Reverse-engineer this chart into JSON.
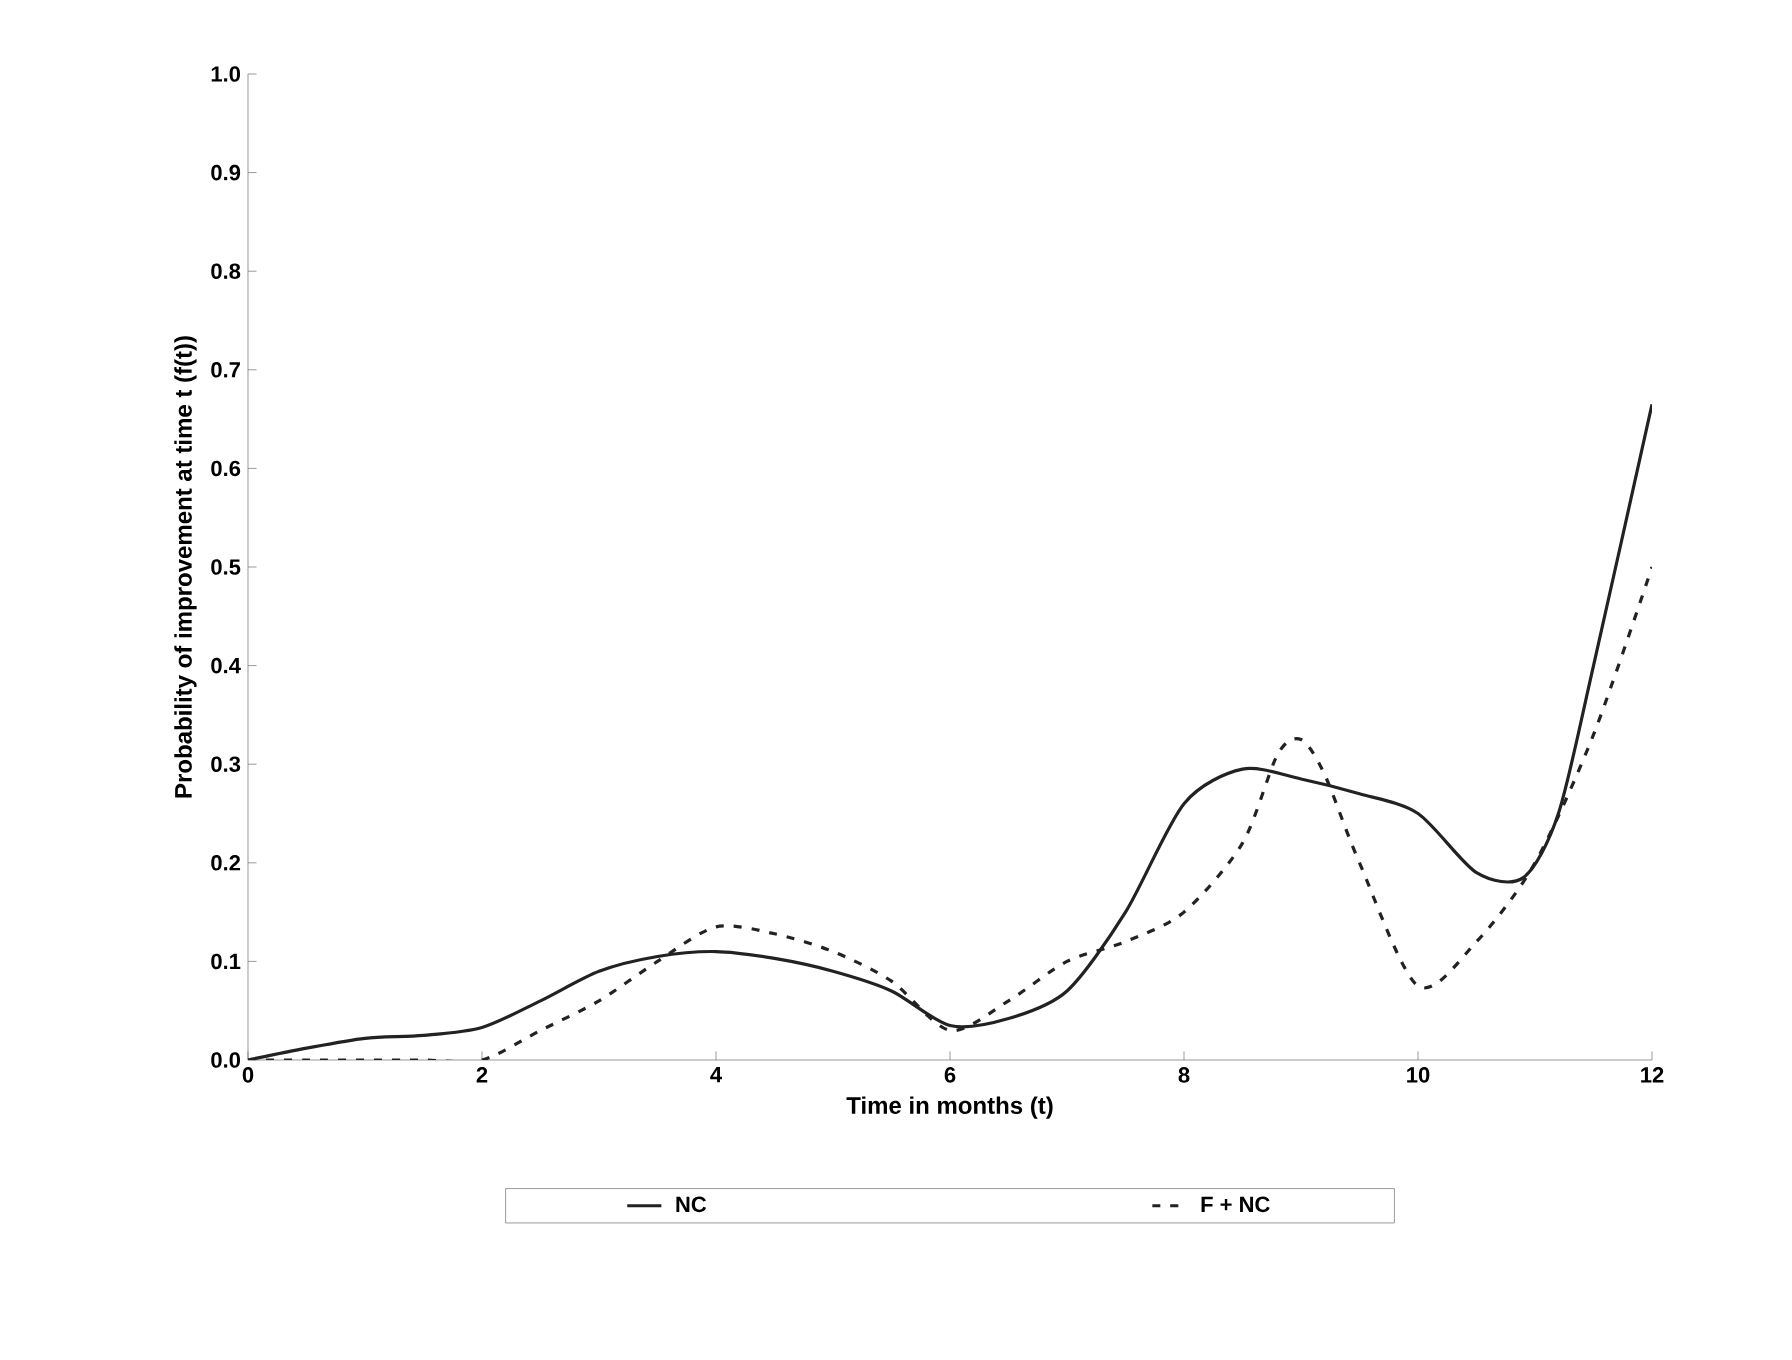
{
  "chart_data": {
    "type": "line",
    "xlabel": "Time in months (t)",
    "ylabel": "Probability of improvement at time t (f(t))",
    "xlim": [
      0,
      12
    ],
    "xticks": [
      0,
      2,
      4,
      6,
      8,
      10,
      12
    ],
    "ylim": [
      0,
      1
    ],
    "yticks": [
      {
        "value": 0,
        "label": "0.0"
      },
      {
        "value": 0.1,
        "label": "0.1"
      },
      {
        "value": 0.2,
        "label": "0.2"
      },
      {
        "value": 0.3,
        "label": "0.3"
      },
      {
        "value": 0.4,
        "label": "0.4"
      },
      {
        "value": 0.5,
        "label": "0.5"
      },
      {
        "value": 0.6,
        "label": "0.6"
      },
      {
        "value": 0.7,
        "label": "0.7"
      },
      {
        "value": 0.8,
        "label": "0.8"
      },
      {
        "value": 0.9,
        "label": "0.9"
      },
      {
        "value": 1,
        "label": "1.0"
      }
    ],
    "grid": false,
    "legend": "bottom",
    "marker": "none",
    "series": [
      {
        "name": "NC",
        "color": "#222222",
        "line_style": "solid",
        "x": [
          0,
          0.5,
          1,
          1.5,
          2,
          2.5,
          3,
          3.5,
          4,
          4.5,
          5,
          5.5,
          6,
          6.5,
          7,
          7.5,
          8,
          8.5,
          9,
          9.5,
          10,
          10.5,
          10.9,
          11.2,
          11.5,
          12
        ],
        "values": [
          0,
          0.012,
          0.022,
          0.025,
          0.033,
          0.06,
          0.09,
          0.105,
          0.11,
          0.103,
          0.09,
          0.07,
          0.035,
          0.042,
          0.07,
          0.15,
          0.26,
          0.295,
          0.285,
          0.27,
          0.25,
          0.19,
          0.185,
          0.25,
          0.4,
          0.665
        ]
      },
      {
        "name": "F + NC",
        "color": "#222222",
        "line_style": "dashed",
        "x": [
          0,
          0.5,
          1,
          1.5,
          2,
          2.5,
          3,
          3.5,
          4,
          4.5,
          5,
          5.5,
          6,
          6.5,
          7,
          7.5,
          8,
          8.5,
          8.8,
          9,
          9.2,
          9.5,
          10,
          10.5,
          11,
          11.5,
          12
        ],
        "values": [
          0,
          0,
          0,
          0,
          0,
          0.03,
          0.06,
          0.1,
          0.135,
          0.128,
          0.11,
          0.08,
          0.03,
          0.06,
          0.1,
          0.12,
          0.15,
          0.22,
          0.31,
          0.325,
          0.29,
          0.2,
          0.075,
          0.12,
          0.2,
          0.33,
          0.5
        ]
      }
    ]
  }
}
